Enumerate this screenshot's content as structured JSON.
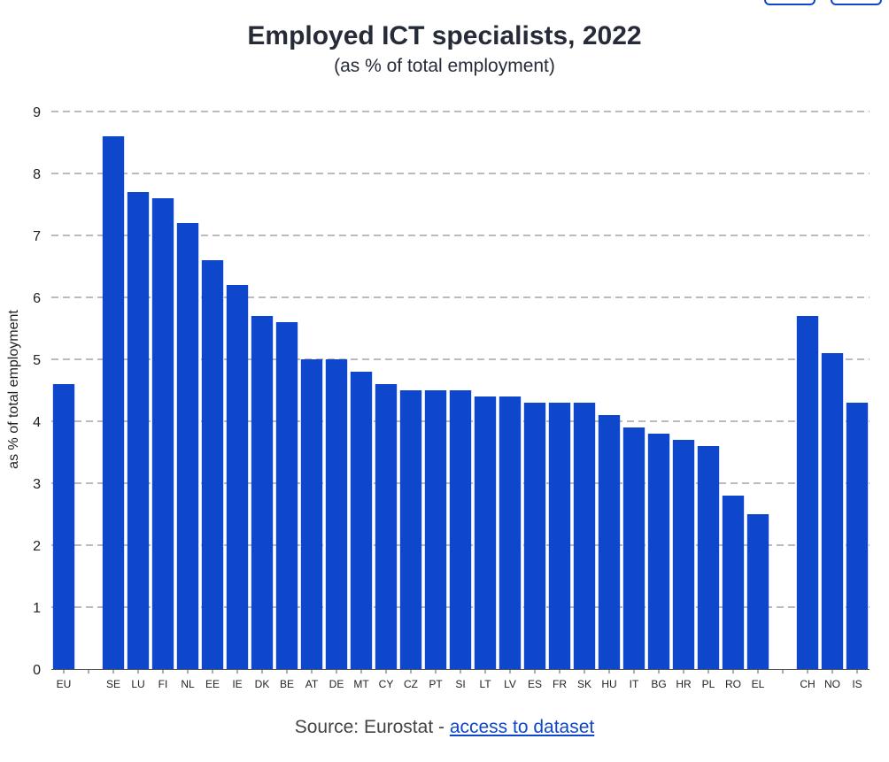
{
  "chart_data": {
    "type": "bar",
    "title": "Employed ICT specialists, 2022",
    "subtitle": "(as % of total employment)",
    "ylabel": "as % of total employment",
    "ylim": [
      0,
      9
    ],
    "yticks": [
      0,
      1,
      2,
      3,
      4,
      5,
      6,
      7,
      8,
      9
    ],
    "grid": true,
    "color": "#0e47cb",
    "categories": [
      "EU",
      "",
      "SE",
      "LU",
      "FI",
      "NL",
      "EE",
      "IE",
      "DK",
      "BE",
      "AT",
      "DE",
      "MT",
      "CY",
      "CZ",
      "PT",
      "SI",
      "LT",
      "LV",
      "ES",
      "FR",
      "SK",
      "HU",
      "IT",
      "BG",
      "HR",
      "PL",
      "RO",
      "EL",
      "",
      "CH",
      "NO",
      "IS"
    ],
    "values": [
      4.6,
      null,
      8.6,
      7.7,
      7.6,
      7.2,
      6.6,
      6.2,
      5.7,
      5.6,
      5.0,
      5.0,
      4.8,
      4.6,
      4.5,
      4.5,
      4.5,
      4.4,
      4.4,
      4.3,
      4.3,
      4.3,
      4.1,
      3.9,
      3.8,
      3.7,
      3.6,
      2.8,
      2.5,
      null,
      5.7,
      5.1,
      4.3
    ]
  },
  "source": {
    "prefix": "Source: Eurostat - ",
    "link_label": "access to dataset"
  }
}
